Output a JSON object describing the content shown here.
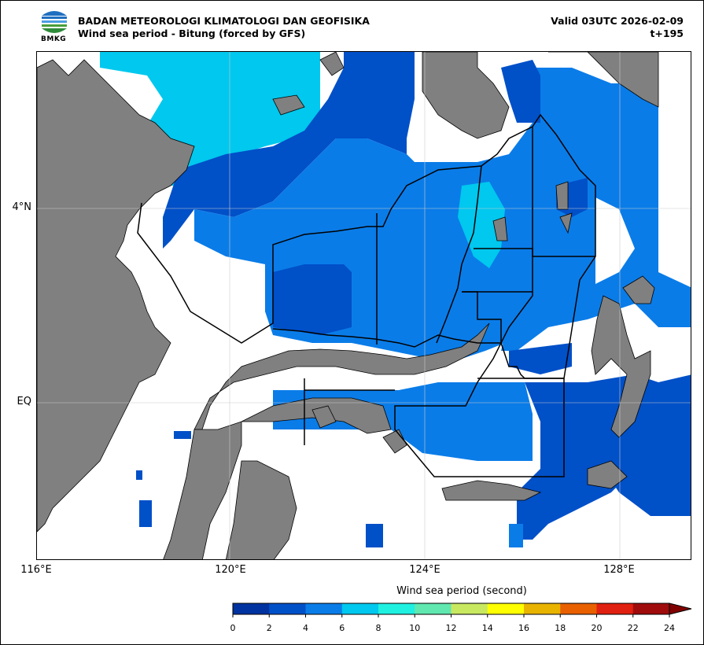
{
  "header": {
    "logo_text": "BMKG",
    "title_line1": "BADAN METEOROLOGI KLIMATOLOGI DAN GEOFISIKA",
    "title_line2": "Wind sea period - Bitung (forced by GFS)",
    "valid": "Valid 03UTC 2026-02-09",
    "lead": "t+195"
  },
  "map": {
    "lon_labels": [
      "116°E",
      "120°E",
      "124°E",
      "128°E"
    ],
    "lat_labels": [
      "4°N",
      "EQ"
    ]
  },
  "colorbar": {
    "title": "Wind sea period (second)",
    "ticks": [
      "0",
      "2",
      "4",
      "6",
      "8",
      "10",
      "12",
      "14",
      "16",
      "18",
      "20",
      "22",
      "24"
    ],
    "colors": [
      "#0033a0",
      "#0050c8",
      "#0a7ce8",
      "#00c8ee",
      "#20f0e0",
      "#60e8b0",
      "#c8e860",
      "#ffff00",
      "#e8b400",
      "#e86000",
      "#e02010",
      "#a00c0c"
    ],
    "extend_color": "#800000"
  },
  "colors": {
    "land": "#808080",
    "sea_none": "#ffffff",
    "boundary": "#000000"
  }
}
